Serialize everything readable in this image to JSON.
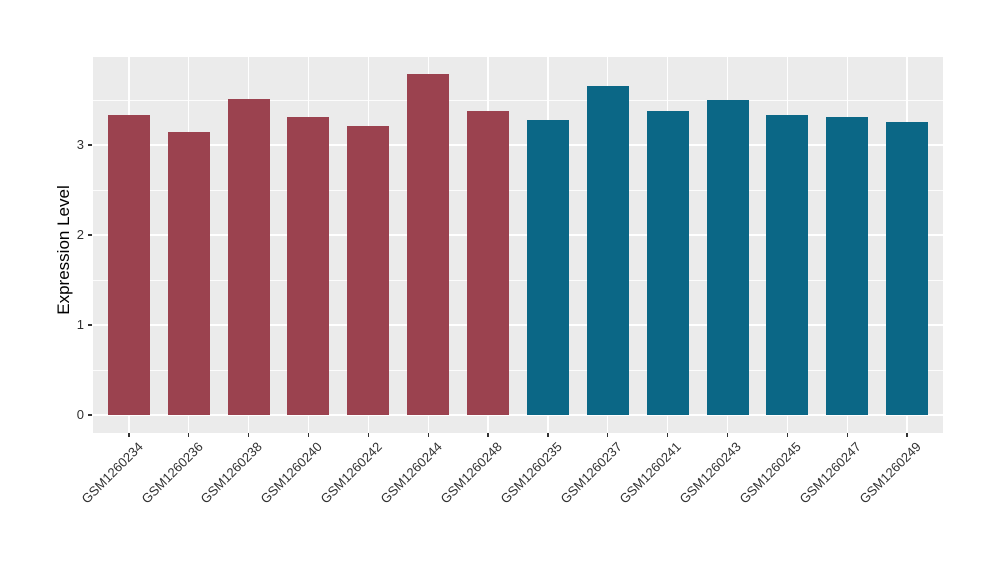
{
  "chart_data": {
    "type": "bar",
    "title": "",
    "xlabel": "",
    "ylabel": "Expression Level",
    "categories": [
      "GSM1260234",
      "GSM1260236",
      "GSM1260238",
      "GSM1260240",
      "GSM1260242",
      "GSM1260244",
      "GSM1260248",
      "GSM1260235",
      "GSM1260237",
      "GSM1260241",
      "GSM1260243",
      "GSM1260245",
      "GSM1260247",
      "GSM1260249"
    ],
    "values": [
      3.33,
      3.14,
      3.51,
      3.31,
      3.21,
      3.79,
      3.38,
      3.28,
      3.66,
      3.38,
      3.5,
      3.33,
      3.31,
      3.26
    ],
    "bar_colors": [
      "#9B424F",
      "#9B424F",
      "#9B424F",
      "#9B424F",
      "#9B424F",
      "#9B424F",
      "#9B424F",
      "#0B6786",
      "#0B6786",
      "#0B6786",
      "#0B6786",
      "#0B6786",
      "#0B6786",
      "#0B6786"
    ],
    "group_colors": {
      "left_group": "#9B424F",
      "right_group": "#0B6786"
    },
    "yticks": [
      0,
      1,
      2,
      3
    ],
    "ytick_labels": [
      "0",
      "1",
      "2",
      "3"
    ],
    "minor_gridlines": [
      0.5,
      1.5,
      2.5,
      3.5
    ],
    "ylim": [
      -0.2,
      3.98
    ],
    "grid": true,
    "legend_position": "none",
    "panel_background": "#EBEBEB",
    "gridline_color": "#FFFFFF"
  }
}
